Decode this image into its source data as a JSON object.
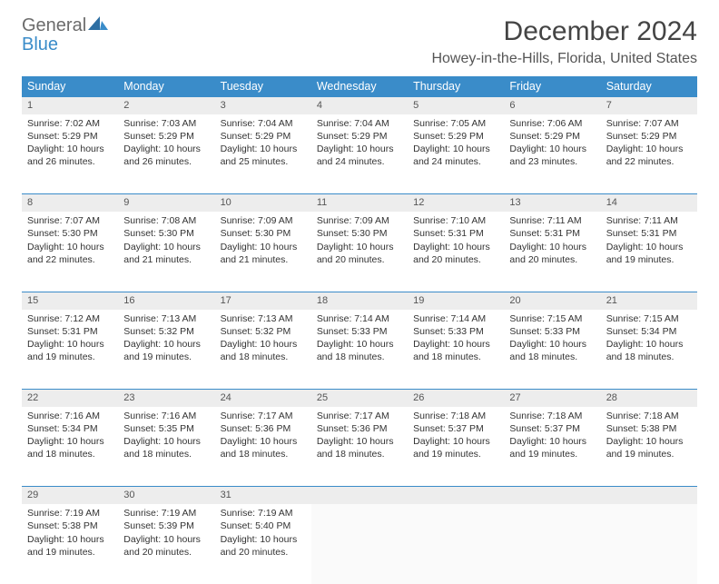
{
  "brand": {
    "general": "General",
    "blue": "Blue"
  },
  "title": "December 2024",
  "location": "Howey-in-the-Hills, Florida, United States",
  "columns": [
    "Sunday",
    "Monday",
    "Tuesday",
    "Wednesday",
    "Thursday",
    "Friday",
    "Saturday"
  ],
  "colors": {
    "header_bg": "#3a8cc9",
    "header_fg": "#ffffff",
    "daynum_bg": "#ededed",
    "rule": "#3a8cc9",
    "text": "#333333"
  },
  "weeks": [
    [
      {
        "n": "1",
        "sr": "Sunrise: 7:02 AM",
        "ss": "Sunset: 5:29 PM",
        "d1": "Daylight: 10 hours",
        "d2": "and 26 minutes."
      },
      {
        "n": "2",
        "sr": "Sunrise: 7:03 AM",
        "ss": "Sunset: 5:29 PM",
        "d1": "Daylight: 10 hours",
        "d2": "and 26 minutes."
      },
      {
        "n": "3",
        "sr": "Sunrise: 7:04 AM",
        "ss": "Sunset: 5:29 PM",
        "d1": "Daylight: 10 hours",
        "d2": "and 25 minutes."
      },
      {
        "n": "4",
        "sr": "Sunrise: 7:04 AM",
        "ss": "Sunset: 5:29 PM",
        "d1": "Daylight: 10 hours",
        "d2": "and 24 minutes."
      },
      {
        "n": "5",
        "sr": "Sunrise: 7:05 AM",
        "ss": "Sunset: 5:29 PM",
        "d1": "Daylight: 10 hours",
        "d2": "and 24 minutes."
      },
      {
        "n": "6",
        "sr": "Sunrise: 7:06 AM",
        "ss": "Sunset: 5:29 PM",
        "d1": "Daylight: 10 hours",
        "d2": "and 23 minutes."
      },
      {
        "n": "7",
        "sr": "Sunrise: 7:07 AM",
        "ss": "Sunset: 5:29 PM",
        "d1": "Daylight: 10 hours",
        "d2": "and 22 minutes."
      }
    ],
    [
      {
        "n": "8",
        "sr": "Sunrise: 7:07 AM",
        "ss": "Sunset: 5:30 PM",
        "d1": "Daylight: 10 hours",
        "d2": "and 22 minutes."
      },
      {
        "n": "9",
        "sr": "Sunrise: 7:08 AM",
        "ss": "Sunset: 5:30 PM",
        "d1": "Daylight: 10 hours",
        "d2": "and 21 minutes."
      },
      {
        "n": "10",
        "sr": "Sunrise: 7:09 AM",
        "ss": "Sunset: 5:30 PM",
        "d1": "Daylight: 10 hours",
        "d2": "and 21 minutes."
      },
      {
        "n": "11",
        "sr": "Sunrise: 7:09 AM",
        "ss": "Sunset: 5:30 PM",
        "d1": "Daylight: 10 hours",
        "d2": "and 20 minutes."
      },
      {
        "n": "12",
        "sr": "Sunrise: 7:10 AM",
        "ss": "Sunset: 5:31 PM",
        "d1": "Daylight: 10 hours",
        "d2": "and 20 minutes."
      },
      {
        "n": "13",
        "sr": "Sunrise: 7:11 AM",
        "ss": "Sunset: 5:31 PM",
        "d1": "Daylight: 10 hours",
        "d2": "and 20 minutes."
      },
      {
        "n": "14",
        "sr": "Sunrise: 7:11 AM",
        "ss": "Sunset: 5:31 PM",
        "d1": "Daylight: 10 hours",
        "d2": "and 19 minutes."
      }
    ],
    [
      {
        "n": "15",
        "sr": "Sunrise: 7:12 AM",
        "ss": "Sunset: 5:31 PM",
        "d1": "Daylight: 10 hours",
        "d2": "and 19 minutes."
      },
      {
        "n": "16",
        "sr": "Sunrise: 7:13 AM",
        "ss": "Sunset: 5:32 PM",
        "d1": "Daylight: 10 hours",
        "d2": "and 19 minutes."
      },
      {
        "n": "17",
        "sr": "Sunrise: 7:13 AM",
        "ss": "Sunset: 5:32 PM",
        "d1": "Daylight: 10 hours",
        "d2": "and 18 minutes."
      },
      {
        "n": "18",
        "sr": "Sunrise: 7:14 AM",
        "ss": "Sunset: 5:33 PM",
        "d1": "Daylight: 10 hours",
        "d2": "and 18 minutes."
      },
      {
        "n": "19",
        "sr": "Sunrise: 7:14 AM",
        "ss": "Sunset: 5:33 PM",
        "d1": "Daylight: 10 hours",
        "d2": "and 18 minutes."
      },
      {
        "n": "20",
        "sr": "Sunrise: 7:15 AM",
        "ss": "Sunset: 5:33 PM",
        "d1": "Daylight: 10 hours",
        "d2": "and 18 minutes."
      },
      {
        "n": "21",
        "sr": "Sunrise: 7:15 AM",
        "ss": "Sunset: 5:34 PM",
        "d1": "Daylight: 10 hours",
        "d2": "and 18 minutes."
      }
    ],
    [
      {
        "n": "22",
        "sr": "Sunrise: 7:16 AM",
        "ss": "Sunset: 5:34 PM",
        "d1": "Daylight: 10 hours",
        "d2": "and 18 minutes."
      },
      {
        "n": "23",
        "sr": "Sunrise: 7:16 AM",
        "ss": "Sunset: 5:35 PM",
        "d1": "Daylight: 10 hours",
        "d2": "and 18 minutes."
      },
      {
        "n": "24",
        "sr": "Sunrise: 7:17 AM",
        "ss": "Sunset: 5:36 PM",
        "d1": "Daylight: 10 hours",
        "d2": "and 18 minutes."
      },
      {
        "n": "25",
        "sr": "Sunrise: 7:17 AM",
        "ss": "Sunset: 5:36 PM",
        "d1": "Daylight: 10 hours",
        "d2": "and 18 minutes."
      },
      {
        "n": "26",
        "sr": "Sunrise: 7:18 AM",
        "ss": "Sunset: 5:37 PM",
        "d1": "Daylight: 10 hours",
        "d2": "and 19 minutes."
      },
      {
        "n": "27",
        "sr": "Sunrise: 7:18 AM",
        "ss": "Sunset: 5:37 PM",
        "d1": "Daylight: 10 hours",
        "d2": "and 19 minutes."
      },
      {
        "n": "28",
        "sr": "Sunrise: 7:18 AM",
        "ss": "Sunset: 5:38 PM",
        "d1": "Daylight: 10 hours",
        "d2": "and 19 minutes."
      }
    ],
    [
      {
        "n": "29",
        "sr": "Sunrise: 7:19 AM",
        "ss": "Sunset: 5:38 PM",
        "d1": "Daylight: 10 hours",
        "d2": "and 19 minutes."
      },
      {
        "n": "30",
        "sr": "Sunrise: 7:19 AM",
        "ss": "Sunset: 5:39 PM",
        "d1": "Daylight: 10 hours",
        "d2": "and 20 minutes."
      },
      {
        "n": "31",
        "sr": "Sunrise: 7:19 AM",
        "ss": "Sunset: 5:40 PM",
        "d1": "Daylight: 10 hours",
        "d2": "and 20 minutes."
      },
      null,
      null,
      null,
      null
    ]
  ]
}
